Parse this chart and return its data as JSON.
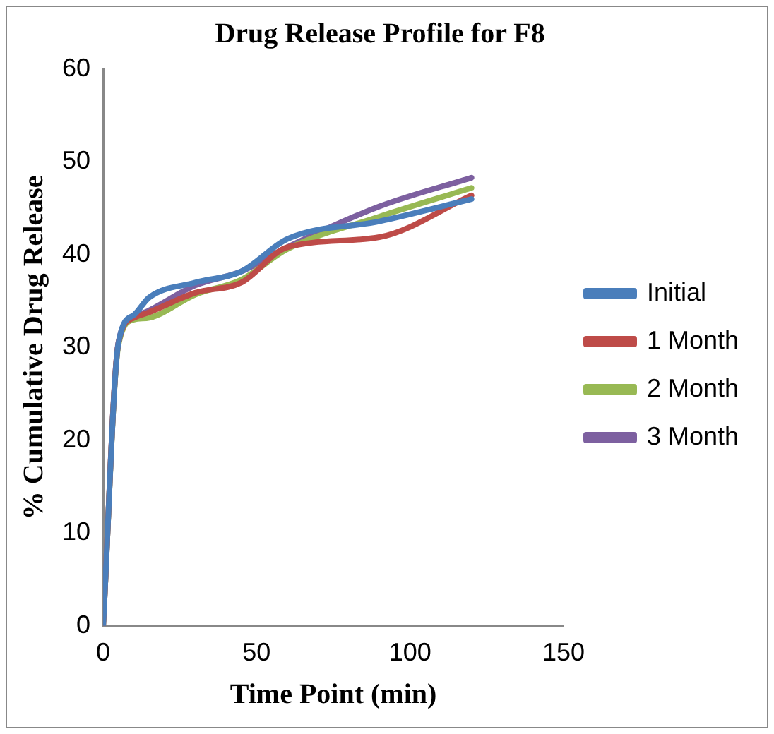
{
  "chart_data": {
    "type": "line",
    "title": "Drug Release Profile for F8",
    "xlabel": "Time Point (min)",
    "ylabel": "% Cumulative Drug Release",
    "x": [
      0,
      5,
      10,
      15,
      30,
      45,
      60,
      90,
      120
    ],
    "series": [
      {
        "name": "Initial",
        "color": "#4a7ebb",
        "values": [
          0,
          30.5,
          33.5,
          35.4,
          37.0,
          38.2,
          41.7,
          43.6,
          46.0
        ]
      },
      {
        "name": "1 Month",
        "color": "#be4b48",
        "values": [
          0,
          30.5,
          33.2,
          33.8,
          35.9,
          37.0,
          40.8,
          41.9,
          46.4
        ]
      },
      {
        "name": "2 Month",
        "color": "#98b954",
        "values": [
          0,
          30.3,
          33.0,
          33.2,
          35.7,
          37.3,
          40.6,
          44.1,
          47.2
        ]
      },
      {
        "name": "3 Month",
        "color": "#7d60a0",
        "values": [
          0,
          30.6,
          33.3,
          34.0,
          36.7,
          38.2,
          40.8,
          45.2,
          48.3
        ]
      }
    ],
    "xlim": [
      0,
      150
    ],
    "xticks": [
      0,
      50,
      100,
      150
    ],
    "ylim": [
      0,
      60
    ],
    "yticks": [
      0,
      10,
      20,
      30,
      40,
      50,
      60
    ],
    "grid": false,
    "legend": "right",
    "marker": "none",
    "line_style": "solid"
  }
}
